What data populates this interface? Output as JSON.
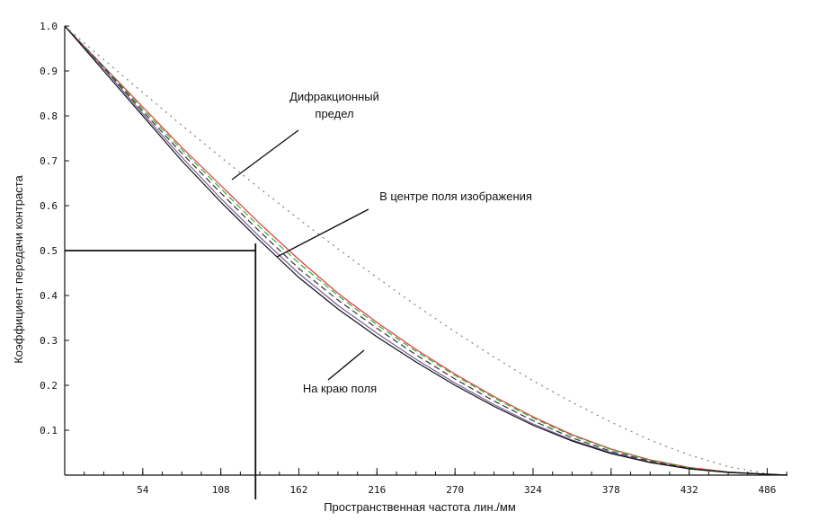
{
  "chart_data": {
    "type": "line",
    "xlabel": "Пространственная частота  лин./мм",
    "ylabel": "Коэффициент передачи контраста",
    "xlim": [
      0,
      500
    ],
    "ylim": [
      0,
      1.0
    ],
    "x_ticks": [
      54,
      108,
      162,
      216,
      270,
      324,
      378,
      432,
      486
    ],
    "y_ticks": [
      0.1,
      0.2,
      0.3,
      0.4,
      0.5,
      0.6,
      0.7,
      0.8,
      0.9,
      1.0
    ],
    "y_tick_labels": [
      "0.1",
      "0.2",
      "0.3",
      "0.4",
      "0.5",
      "0.6",
      "0.7",
      "0.8",
      "0.9",
      "1.0"
    ],
    "grid": false,
    "x": [
      0,
      27,
      54,
      81,
      108,
      135,
      162,
      189,
      216,
      243,
      270,
      297,
      324,
      351,
      378,
      405,
      432,
      459,
      486,
      500
    ],
    "series": [
      {
        "values": [
          1.0,
          0.925,
          0.852,
          0.779,
          0.708,
          0.638,
          0.57,
          0.504,
          0.44,
          0.378,
          0.319,
          0.263,
          0.21,
          0.162,
          0.118,
          0.078,
          0.045,
          0.019,
          0.003,
          0.0
        ],
        "color": "#888888",
        "style": "dotted"
      },
      {
        "values": [
          1.0,
          0.91,
          0.82,
          0.73,
          0.645,
          0.56,
          0.48,
          0.405,
          0.34,
          0.28,
          0.225,
          0.175,
          0.13,
          0.09,
          0.058,
          0.034,
          0.017,
          0.007,
          0.002,
          0.0
        ],
        "color": "#e03a3a",
        "style": "solid"
      },
      {
        "values": [
          1.0,
          0.91,
          0.815,
          0.725,
          0.638,
          0.552,
          0.472,
          0.4,
          0.335,
          0.276,
          0.222,
          0.172,
          0.127,
          0.088,
          0.057,
          0.033,
          0.016,
          0.007,
          0.002,
          0.0
        ],
        "color": "#2fae2f",
        "style": "dashed"
      },
      {
        "values": [
          1.0,
          0.908,
          0.81,
          0.717,
          0.628,
          0.542,
          0.46,
          0.39,
          0.327,
          0.268,
          0.214,
          0.165,
          0.121,
          0.083,
          0.053,
          0.031,
          0.015,
          0.006,
          0.002,
          0.0
        ],
        "color": "#333333",
        "style": "dashed"
      },
      {
        "values": [
          1.0,
          0.905,
          0.805,
          0.708,
          0.616,
          0.53,
          0.449,
          0.378,
          0.316,
          0.258,
          0.205,
          0.157,
          0.114,
          0.078,
          0.05,
          0.029,
          0.014,
          0.006,
          0.002,
          0.0
        ],
        "color": "#7a5a9a",
        "style": "solid"
      },
      {
        "values": [
          1.0,
          0.9,
          0.8,
          0.7,
          0.608,
          0.522,
          0.44,
          0.37,
          0.308,
          0.252,
          0.2,
          0.153,
          0.111,
          0.076,
          0.048,
          0.028,
          0.014,
          0.006,
          0.002,
          0.0
        ],
        "color": "#111111",
        "style": "solid"
      }
    ],
    "reference_point": {
      "x": 132,
      "y": 0.5
    },
    "annotations": [
      {
        "lines": [
          "Дифракционный",
          "предел"
        ]
      },
      {
        "lines": [
          "В центре поля изображения"
        ]
      },
      {
        "lines": [
          "На краю поля"
        ]
      }
    ]
  }
}
